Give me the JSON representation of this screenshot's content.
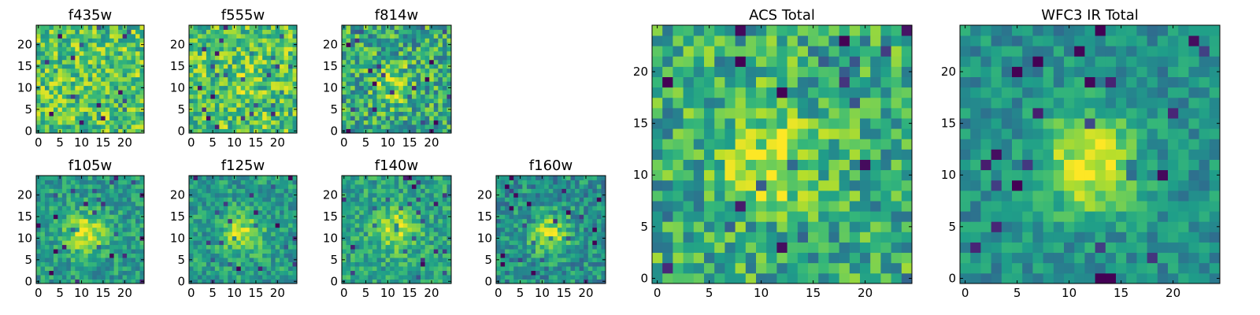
{
  "chart_data": [
    {
      "type": "heatmap",
      "title": "f435w",
      "size": 25,
      "xticks": [
        0,
        5,
        10,
        15,
        20
      ],
      "yticks": [
        0,
        5,
        10,
        15,
        20
      ],
      "xlim": [
        -0.5,
        24.5
      ],
      "ylim": [
        -0.5,
        24.5
      ],
      "colormap": "viridis",
      "peak": [
        12,
        12
      ],
      "peak_amp": 0.0,
      "noise": 0.5,
      "base": 0.72,
      "seed": 11
    },
    {
      "type": "heatmap",
      "title": "f555w",
      "size": 25,
      "xticks": [
        0,
        5,
        10,
        15,
        20
      ],
      "yticks": [
        0,
        5,
        10,
        15,
        20
      ],
      "xlim": [
        -0.5,
        24.5
      ],
      "ylim": [
        -0.5,
        24.5
      ],
      "colormap": "viridis",
      "peak": [
        12,
        12
      ],
      "peak_amp": 0.05,
      "noise": 0.5,
      "base": 0.72,
      "seed": 23
    },
    {
      "type": "heatmap",
      "title": "f814w",
      "size": 25,
      "xticks": [
        0,
        5,
        10,
        15,
        20
      ],
      "yticks": [
        0,
        5,
        10,
        15,
        20
      ],
      "xlim": [
        -0.5,
        24.5
      ],
      "ylim": [
        -0.5,
        24.5
      ],
      "colormap": "viridis",
      "peak": [
        11,
        11
      ],
      "peak_amp": 0.25,
      "noise": 0.55,
      "base": 0.6,
      "seed": 37
    },
    {
      "type": "heatmap",
      "title": "f105w",
      "size": 25,
      "xticks": [
        0,
        5,
        10,
        15,
        20
      ],
      "yticks": [
        0,
        5,
        10,
        15,
        20
      ],
      "xlim": [
        -0.5,
        24.5
      ],
      "ylim": [
        -0.5,
        24.5
      ],
      "colormap": "viridis",
      "peak": [
        11,
        11
      ],
      "peak_amp": 0.4,
      "noise": 0.35,
      "base": 0.55,
      "seed": 41
    },
    {
      "type": "heatmap",
      "title": "f125w",
      "size": 25,
      "xticks": [
        0,
        5,
        10,
        15,
        20
      ],
      "yticks": [
        0,
        5,
        10,
        15,
        20
      ],
      "xlim": [
        -0.5,
        24.5
      ],
      "ylim": [
        -0.5,
        24.5
      ],
      "colormap": "viridis",
      "peak": [
        12,
        11
      ],
      "peak_amp": 0.35,
      "noise": 0.35,
      "base": 0.55,
      "seed": 53
    },
    {
      "type": "heatmap",
      "title": "f140w",
      "size": 25,
      "xticks": [
        0,
        5,
        10,
        15,
        20
      ],
      "yticks": [
        0,
        5,
        10,
        15,
        20
      ],
      "xlim": [
        -0.5,
        24.5
      ],
      "ylim": [
        -0.5,
        24.5
      ],
      "colormap": "viridis",
      "peak": [
        12,
        12
      ],
      "peak_amp": 0.35,
      "noise": 0.35,
      "base": 0.58,
      "seed": 61
    },
    {
      "type": "heatmap",
      "title": "f160w",
      "size": 25,
      "xticks": [
        0,
        5,
        10,
        15,
        20
      ],
      "yticks": [
        0,
        5,
        10,
        15,
        20
      ],
      "xlim": [
        -0.5,
        24.5
      ],
      "ylim": [
        -0.5,
        24.5
      ],
      "colormap": "viridis",
      "peak": [
        12,
        11
      ],
      "peak_amp": 0.38,
      "noise": 0.4,
      "base": 0.5,
      "seed": 73
    },
    {
      "type": "heatmap",
      "title": "ACS Total",
      "size": 25,
      "xticks": [
        0,
        5,
        10,
        15,
        20
      ],
      "yticks": [
        0,
        5,
        10,
        15,
        20
      ],
      "xlim": [
        -0.5,
        24.5
      ],
      "ylim": [
        -0.5,
        24.5
      ],
      "colormap": "viridis",
      "peak": [
        11,
        12
      ],
      "peak_amp": 0.3,
      "noise": 0.5,
      "base": 0.62,
      "seed": 89
    },
    {
      "type": "heatmap",
      "title": "WFC3 IR Total",
      "size": 25,
      "xticks": [
        0,
        5,
        10,
        15,
        20
      ],
      "yticks": [
        0,
        5,
        10,
        15,
        20
      ],
      "xlim": [
        -0.5,
        24.5
      ],
      "ylim": [
        -0.5,
        24.5
      ],
      "colormap": "viridis",
      "peak": [
        12,
        11
      ],
      "peak_amp": 0.5,
      "noise": 0.3,
      "base": 0.5,
      "seed": 97
    }
  ]
}
